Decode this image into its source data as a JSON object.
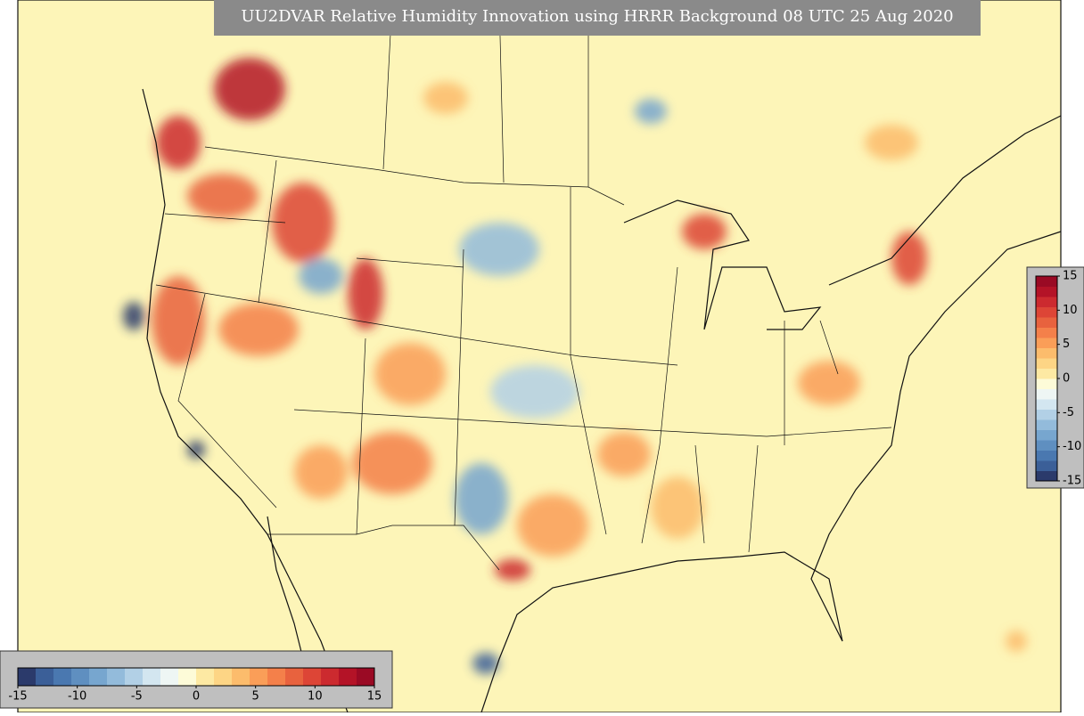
{
  "title": "UU2DVAR Relative Humidity Innovation using HRRR Background 08 UTC 25 Aug 2020",
  "colormap": [
    "#2b3a6b",
    "#3b5f98",
    "#4a78b0",
    "#5f8fc0",
    "#77a6cf",
    "#93bbdb",
    "#b2d0e6",
    "#d3e6f0",
    "#eef6f4",
    "#fdfbd8",
    "#fde9a3",
    "#fdd585",
    "#fcbc6c",
    "#fa9e58",
    "#f4804a",
    "#e8623e",
    "#dd4536",
    "#cc2a2f",
    "#b41327",
    "#9a0a24"
  ],
  "colorbars": [
    {
      "orientation": "horizontal",
      "ticks": [
        -15,
        -10,
        -5,
        0,
        5,
        10,
        15
      ]
    },
    {
      "orientation": "vertical",
      "ticks": [
        15,
        10,
        5,
        0,
        -5,
        -10,
        -15
      ]
    }
  ]
}
